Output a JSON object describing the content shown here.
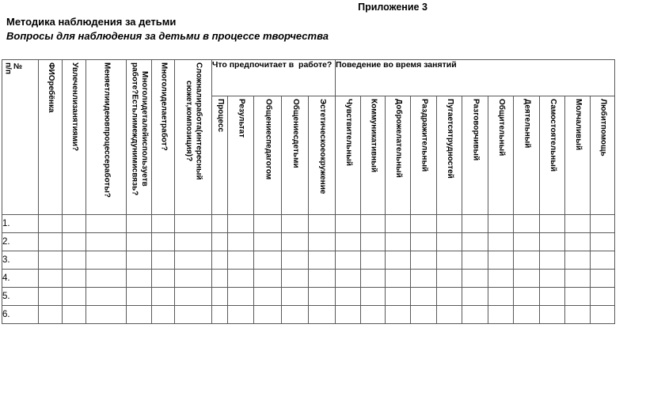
{
  "page": {
    "appendix_label": "Приложение 3",
    "title": "Методика наблюдения за детьми",
    "subtitle": "Вопросы для наблюдения за детьми в процессе творчества"
  },
  "table": {
    "vertical_headers": [
      "№\nп/п",
      "ФИОребёнка",
      "Увлеченлизанятиями?",
      "Меняетлиидеювпроцессеработы?",
      "Многолидеталейиспользуетв\nработе?Естьлимеждунимисвязь?",
      "Многолиделаетработ?",
      "Сложналиработа(интересный\nсюжет,композиция)?"
    ],
    "groups": [
      {
        "label": "Что предпочитает в  работе?",
        "colspan": 5
      },
      {
        "label": "Поведение во время занятий",
        "colspan": 11
      }
    ],
    "sub_headers": [
      "Процесс",
      "Результат",
      "Общениеспедагогом",
      "Общениесдетьми",
      "Эстетическоеокружение",
      "Чувствительный",
      "Коммуникативный",
      "Доброжелательный",
      "Раздражительный",
      "Пугаетсятрудностей",
      "Разговорчивый",
      "Общительный",
      "Деятельный",
      "Самостоятельный",
      "Молчаливый",
      "Любитпомощь"
    ],
    "rows": [
      "1.",
      "2.",
      "3.",
      "4.",
      "5.",
      "6."
    ]
  }
}
